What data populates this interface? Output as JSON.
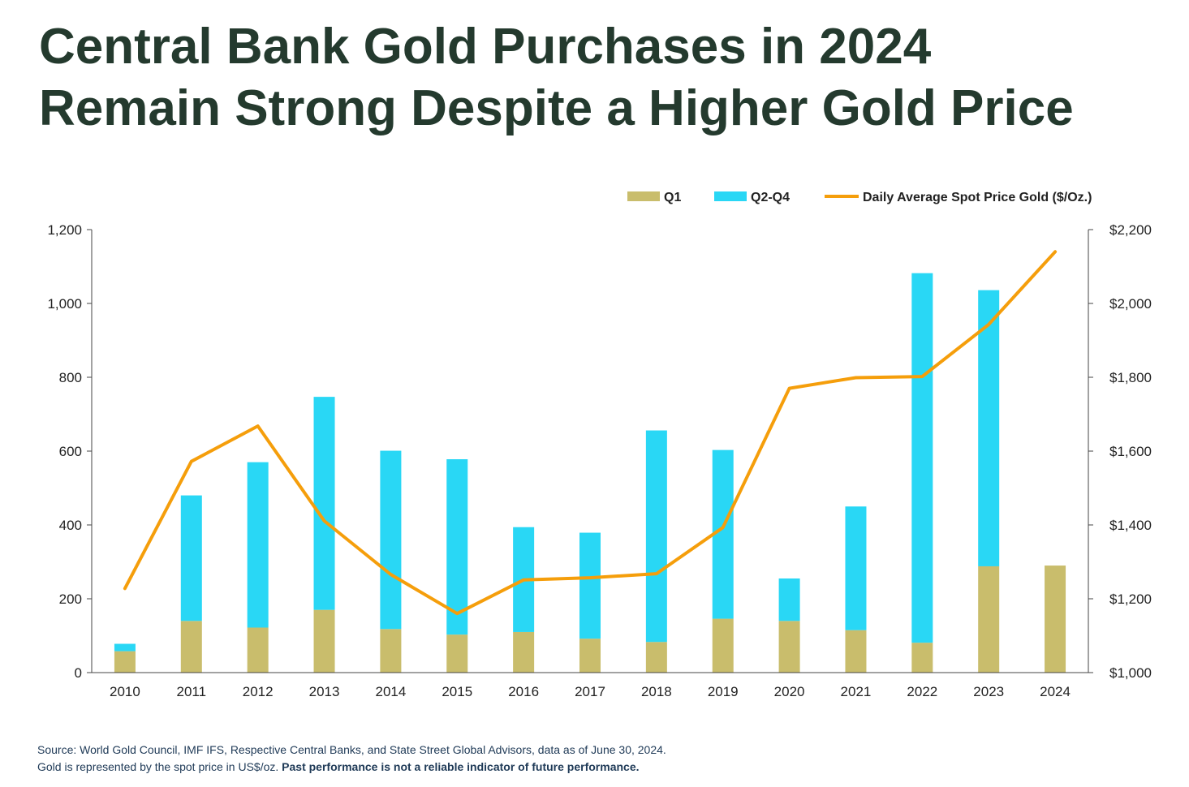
{
  "title": {
    "line1": "Central Bank Gold Purchases in 2024",
    "line2": "Remain Strong Despite a Higher Gold Price"
  },
  "legend": {
    "q1": "Q1",
    "q2q4": "Q2-Q4",
    "price": "Daily Average Spot Price Gold ($/Oz.)"
  },
  "colors": {
    "title": "#243a2e",
    "q1": "#c9bd6c",
    "q2q4": "#29d7f5",
    "price": "#f59e0b",
    "axis": "#444444",
    "source_text": "#1f3a57"
  },
  "source": {
    "line1": "Source: World Gold Council, IMF IFS, Respective Central Banks, and State Street Global Advisors, data as of June 30, 2024.",
    "line2_normal": "Gold is represented by the spot price in US$/oz. ",
    "line2_bold": "Past performance is not a reliable indicator of future performance."
  },
  "chart_data": {
    "type": "bar",
    "stacked": true,
    "categories": [
      "2010",
      "2011",
      "2012",
      "2013",
      "2014",
      "2015",
      "2016",
      "2017",
      "2018",
      "2019",
      "2020",
      "2021",
      "2022",
      "2023",
      "2024"
    ],
    "series": [
      {
        "name": "Q1",
        "values": [
          58,
          140,
          122,
          170,
          118,
          103,
          110,
          92,
          83,
          146,
          140,
          115,
          81,
          288,
          290
        ]
      },
      {
        "name": "Q2-Q4",
        "values": [
          20,
          340,
          448,
          577,
          483,
          475,
          284,
          287,
          573,
          457,
          115,
          335,
          1001,
          748,
          0
        ]
      }
    ],
    "line_series": {
      "name": "Daily Average Spot Price Gold ($/Oz.)",
      "axis": "right",
      "values": [
        1228,
        1572,
        1668,
        1411,
        1266,
        1160,
        1251,
        1257,
        1268,
        1393,
        1770,
        1799,
        1802,
        1943,
        2140
      ]
    },
    "y_left": {
      "min": 0,
      "max": 1200,
      "ticks": [
        0,
        200,
        400,
        600,
        800,
        1000,
        1200
      ],
      "labels": [
        "0",
        "200",
        "400",
        "600",
        "800",
        "1,000",
        "1,200"
      ]
    },
    "y_right": {
      "min": 1000,
      "max": 2200,
      "ticks": [
        1000,
        1200,
        1400,
        1600,
        1800,
        2000,
        2200
      ],
      "labels": [
        "$1,000",
        "$1,200",
        "$1,400",
        "$1,600",
        "$1,800",
        "$2,000",
        "$2,200"
      ]
    },
    "xlabel": "",
    "ylabel": "",
    "legend_position": "top-right",
    "grid": false
  }
}
